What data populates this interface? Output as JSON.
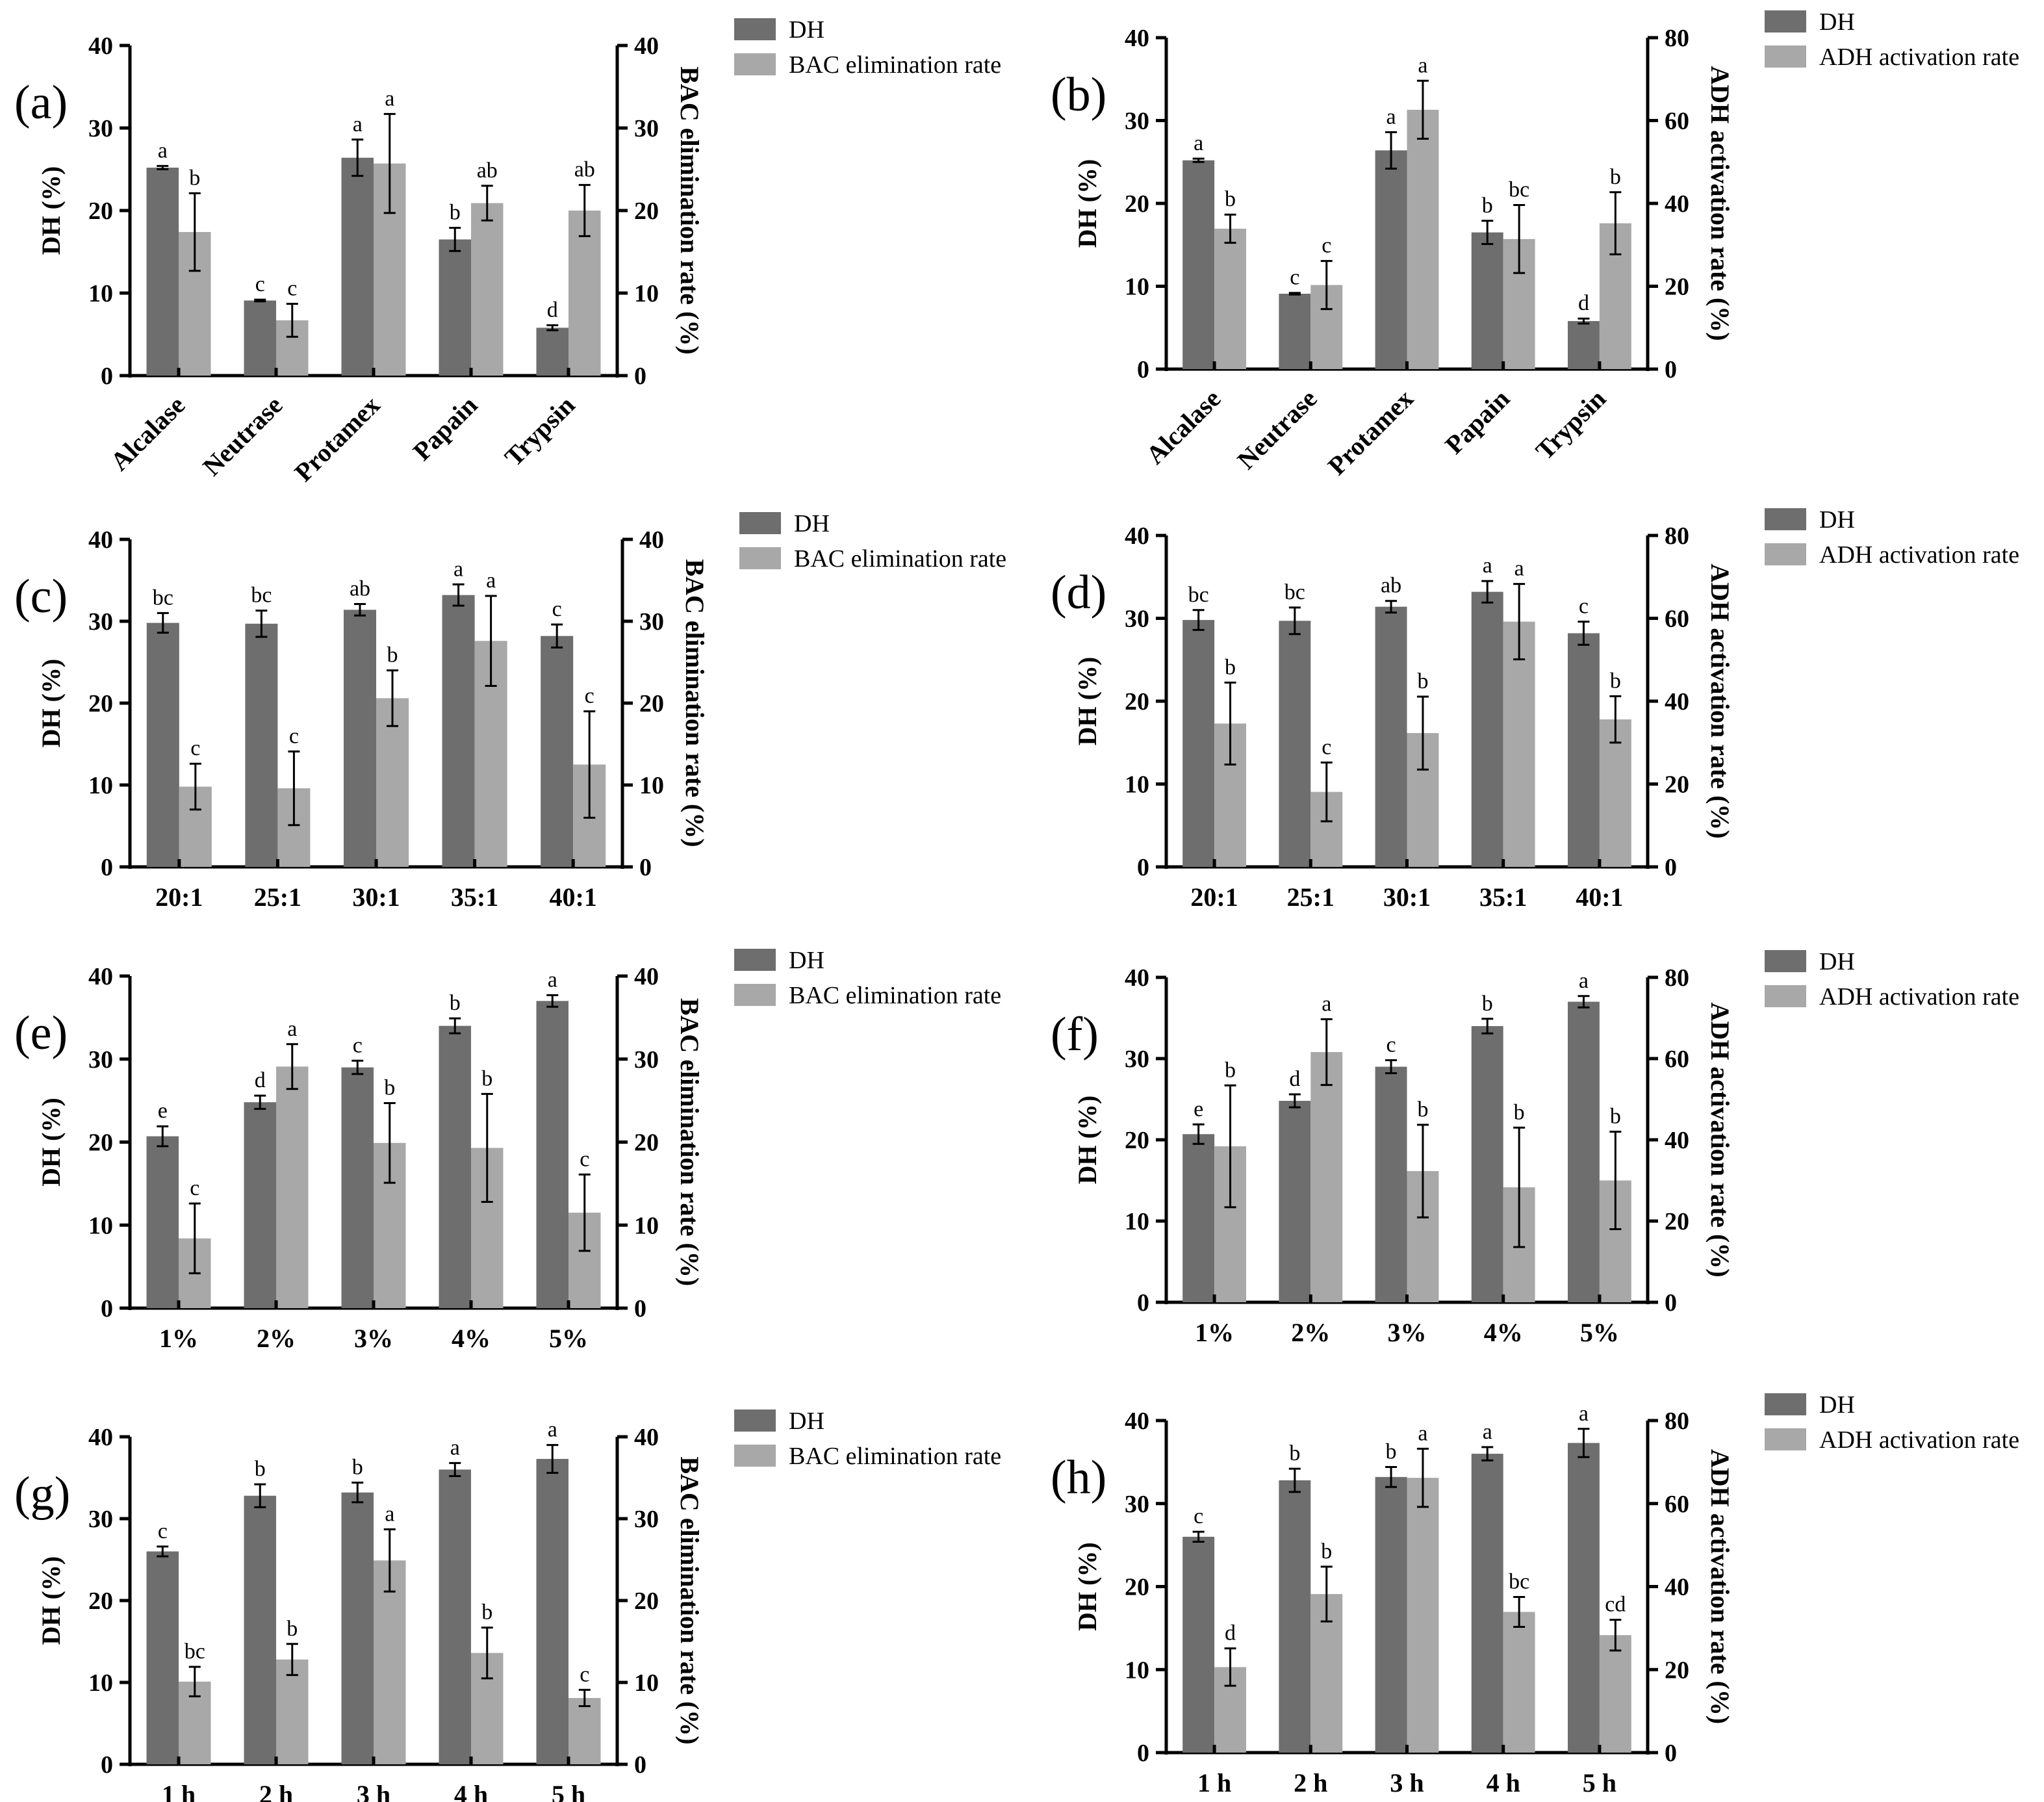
{
  "colors": {
    "dh": "#6e6e6e",
    "secondary": "#a8a8a8",
    "axis": "#000000",
    "text": "#000000"
  },
  "chart_data": [
    {
      "id": "a",
      "panel_label": "(a)",
      "type": "bar",
      "categories": [
        "Alcalase",
        "Neutrase",
        "Protamex",
        "Papain",
        "Trypsin"
      ],
      "category_label_rotated": true,
      "ylabel": "DH (%)",
      "y2label": "BAC elimination rate (%)",
      "ylim": [
        0,
        40
      ],
      "y2lim": [
        0,
        40
      ],
      "yticks": [
        0,
        10,
        20,
        30,
        40
      ],
      "y2ticks": [
        0,
        10,
        20,
        30,
        40
      ],
      "legend": [
        "DH",
        "BAC elimination rate"
      ],
      "series": [
        {
          "name": "DH",
          "axis": "left",
          "values": [
            25.2,
            9.1,
            26.4,
            16.5,
            5.8
          ],
          "errors": [
            0.2,
            0.1,
            2.2,
            1.4,
            0.3
          ],
          "letters": [
            "a",
            "c",
            "a",
            "b",
            "d"
          ]
        },
        {
          "name": "BAC elimination rate",
          "axis": "right",
          "values": [
            17.4,
            6.7,
            25.7,
            20.9,
            20.0
          ],
          "errors": [
            4.7,
            2.0,
            6.0,
            2.1,
            3.1
          ],
          "letters": [
            "b",
            "c",
            "a",
            "ab",
            "ab"
          ]
        }
      ]
    },
    {
      "id": "b",
      "panel_label": "(b)",
      "type": "bar",
      "categories": [
        "Alcalase",
        "Neutrase",
        "Protamex",
        "Papain",
        "Trypsin"
      ],
      "category_label_rotated": true,
      "ylabel": "DH (%)",
      "y2label": "ADH activation rate (%)",
      "ylim": [
        0,
        40
      ],
      "y2lim": [
        0,
        80
      ],
      "yticks": [
        0,
        10,
        20,
        30,
        40
      ],
      "y2ticks": [
        0,
        20,
        40,
        60,
        80
      ],
      "legend": [
        "DH",
        "ADH activation rate"
      ],
      "series": [
        {
          "name": "DH",
          "axis": "left",
          "values": [
            25.2,
            9.1,
            26.4,
            16.5,
            5.8
          ],
          "errors": [
            0.2,
            0.1,
            2.2,
            1.4,
            0.3
          ],
          "letters": [
            "a",
            "c",
            "a",
            "b",
            "d"
          ]
        },
        {
          "name": "ADH activation rate",
          "axis": "right",
          "values": [
            33.9,
            20.3,
            62.6,
            31.4,
            35.2
          ],
          "errors": [
            3.4,
            5.8,
            7.0,
            8.2,
            7.5
          ],
          "letters": [
            "b",
            "c",
            "a",
            "bc",
            "b"
          ]
        }
      ]
    },
    {
      "id": "c",
      "panel_label": "(c)",
      "type": "bar",
      "categories": [
        "20:1",
        "25:1",
        "30:1",
        "35:1",
        "40:1"
      ],
      "category_label_rotated": false,
      "ylabel": "DH (%)",
      "y2label": "BAC elimination rate (%)",
      "ylim": [
        0,
        40
      ],
      "y2lim": [
        0,
        40
      ],
      "yticks": [
        0,
        10,
        20,
        30,
        40
      ],
      "y2ticks": [
        0,
        10,
        20,
        30,
        40
      ],
      "legend": [
        "DH",
        "BAC elimination rate"
      ],
      "series": [
        {
          "name": "DH",
          "axis": "left",
          "values": [
            29.8,
            29.7,
            31.4,
            33.2,
            28.2
          ],
          "errors": [
            1.2,
            1.6,
            0.7,
            1.3,
            1.4
          ],
          "letters": [
            "bc",
            "bc",
            "ab",
            "a",
            "c"
          ]
        },
        {
          "name": "BAC elimination rate",
          "axis": "right",
          "values": [
            9.8,
            9.6,
            20.6,
            27.6,
            12.5
          ],
          "errors": [
            2.8,
            4.5,
            3.4,
            5.5,
            6.5
          ],
          "letters": [
            "c",
            "c",
            "b",
            "a",
            "c"
          ]
        }
      ]
    },
    {
      "id": "d",
      "panel_label": "(d)",
      "type": "bar",
      "categories": [
        "20:1",
        "25:1",
        "30:1",
        "35:1",
        "40:1"
      ],
      "category_label_rotated": false,
      "ylabel": "DH (%)",
      "y2label": "ADH activation rate (%)",
      "ylim": [
        0,
        40
      ],
      "y2lim": [
        0,
        80
      ],
      "yticks": [
        0,
        10,
        20,
        30,
        40
      ],
      "y2ticks": [
        0,
        20,
        40,
        60,
        80
      ],
      "legend": [
        "DH",
        "ADH activation rate"
      ],
      "series": [
        {
          "name": "DH",
          "axis": "left",
          "values": [
            29.8,
            29.7,
            31.4,
            33.2,
            28.2
          ],
          "errors": [
            1.2,
            1.6,
            0.7,
            1.3,
            1.4
          ],
          "letters": [
            "bc",
            "bc",
            "ab",
            "a",
            "c"
          ]
        },
        {
          "name": "ADH activation rate",
          "axis": "right",
          "values": [
            34.6,
            18.1,
            32.3,
            59.2,
            35.6
          ],
          "errors": [
            9.9,
            7.1,
            8.8,
            9.1,
            5.6
          ],
          "letters": [
            "b",
            "c",
            "b",
            "a",
            "b"
          ]
        }
      ]
    },
    {
      "id": "e",
      "panel_label": "(e)",
      "type": "bar",
      "categories": [
        "1%",
        "2%",
        "3%",
        "4%",
        "5%"
      ],
      "category_label_rotated": false,
      "ylabel": "DH (%)",
      "y2label": "BAC elimination rate (%)",
      "ylim": [
        0,
        40
      ],
      "y2lim": [
        0,
        40
      ],
      "yticks": [
        0,
        10,
        20,
        30,
        40
      ],
      "y2ticks": [
        0,
        10,
        20,
        30,
        40
      ],
      "legend": [
        "DH",
        "BAC elimination rate"
      ],
      "series": [
        {
          "name": "DH",
          "axis": "left",
          "values": [
            20.7,
            24.8,
            29.0,
            34.0,
            37.0
          ],
          "errors": [
            1.2,
            0.8,
            0.8,
            0.9,
            0.7
          ],
          "letters": [
            "e",
            "d",
            "c",
            "b",
            "a"
          ]
        },
        {
          "name": "BAC elimination rate",
          "axis": "right",
          "values": [
            8.4,
            29.1,
            19.9,
            19.3,
            11.5
          ],
          "errors": [
            4.2,
            2.7,
            4.8,
            6.5,
            4.6
          ],
          "letters": [
            "c",
            "a",
            "b",
            "b",
            "c"
          ]
        }
      ]
    },
    {
      "id": "f",
      "panel_label": "(f)",
      "type": "bar",
      "categories": [
        "1%",
        "2%",
        "3%",
        "4%",
        "5%"
      ],
      "category_label_rotated": false,
      "ylabel": "DH (%)",
      "y2label": "ADH activation rate (%)",
      "ylim": [
        0,
        40
      ],
      "y2lim": [
        0,
        80
      ],
      "yticks": [
        0,
        10,
        20,
        30,
        40
      ],
      "y2ticks": [
        0,
        20,
        40,
        60,
        80
      ],
      "legend": [
        "DH",
        "ADH activation rate"
      ],
      "series": [
        {
          "name": "DH",
          "axis": "left",
          "values": [
            20.7,
            24.8,
            29.0,
            34.0,
            37.0
          ],
          "errors": [
            1.2,
            0.8,
            0.8,
            0.9,
            0.7
          ],
          "letters": [
            "e",
            "d",
            "c",
            "b",
            "a"
          ]
        },
        {
          "name": "ADH activation rate",
          "axis": "right",
          "values": [
            38.4,
            61.6,
            32.3,
            28.3,
            30.0
          ],
          "errors": [
            15.0,
            8.1,
            11.4,
            14.7,
            12.0
          ],
          "letters": [
            "b",
            "a",
            "b",
            "b",
            "b"
          ]
        }
      ]
    },
    {
      "id": "g",
      "panel_label": "(g)",
      "type": "bar",
      "categories": [
        "1 h",
        "2 h",
        "3 h",
        "4 h",
        "5 h"
      ],
      "category_label_rotated": false,
      "ylabel": "DH (%)",
      "y2label": "BAC elimination rate (%)",
      "ylim": [
        0,
        40
      ],
      "y2lim": [
        0,
        40
      ],
      "yticks": [
        0,
        10,
        20,
        30,
        40
      ],
      "y2ticks": [
        0,
        10,
        20,
        30,
        40
      ],
      "legend": [
        "DH",
        "BAC elimination rate"
      ],
      "series": [
        {
          "name": "DH",
          "axis": "left",
          "values": [
            26.0,
            32.8,
            33.2,
            36.0,
            37.3
          ],
          "errors": [
            0.6,
            1.4,
            1.2,
            0.8,
            1.7
          ],
          "letters": [
            "c",
            "b",
            "b",
            "a",
            "a"
          ]
        },
        {
          "name": "BAC elimination rate",
          "axis": "right",
          "values": [
            10.1,
            12.8,
            24.9,
            13.6,
            8.1
          ],
          "errors": [
            1.8,
            1.9,
            3.8,
            3.1,
            1.0
          ],
          "letters": [
            "bc",
            "b",
            "a",
            "b",
            "c"
          ]
        }
      ]
    },
    {
      "id": "h",
      "panel_label": "(h)",
      "type": "bar",
      "categories": [
        "1 h",
        "2 h",
        "3 h",
        "4 h",
        "5 h"
      ],
      "category_label_rotated": false,
      "ylabel": "DH (%)",
      "y2label": "ADH activation rate (%)",
      "ylim": [
        0,
        40
      ],
      "y2lim": [
        0,
        80
      ],
      "yticks": [
        0,
        10,
        20,
        30,
        40
      ],
      "y2ticks": [
        0,
        20,
        40,
        60,
        80
      ],
      "legend": [
        "DH",
        "ADH activation rate"
      ],
      "series": [
        {
          "name": "DH",
          "axis": "left",
          "values": [
            26.0,
            32.8,
            33.2,
            36.0,
            37.3
          ],
          "errors": [
            0.6,
            1.4,
            1.2,
            0.8,
            1.7
          ],
          "letters": [
            "c",
            "b",
            "b",
            "a",
            "a"
          ]
        },
        {
          "name": "ADH activation rate",
          "axis": "right",
          "values": [
            20.6,
            38.2,
            66.2,
            33.9,
            28.3
          ],
          "errors": [
            4.5,
            6.6,
            7.0,
            3.6,
            3.7
          ],
          "letters": [
            "d",
            "b",
            "a",
            "bc",
            "cd"
          ]
        }
      ]
    }
  ]
}
